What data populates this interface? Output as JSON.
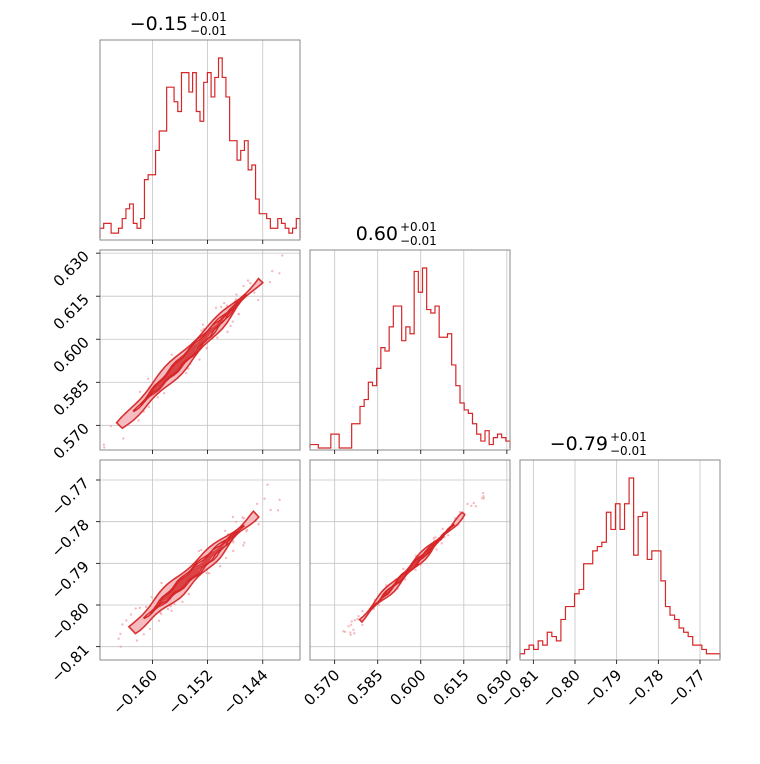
{
  "chart_data": {
    "type": "corner",
    "color": "#d62728",
    "grid": true,
    "parameters": [
      {
        "title": {
          "median": "−0.15",
          "plus": "+0.01",
          "minus": "−0.01"
        },
        "ticks": [
          -0.16,
          -0.152,
          -0.144
        ],
        "tick_labels": [
          "−0.160",
          "−0.152",
          "−0.144"
        ],
        "range": [
          -0.1676,
          -0.1386
        ]
      },
      {
        "title": {
          "median": "0.60",
          "plus": "+0.01",
          "minus": "−0.01"
        },
        "ticks": [
          0.57,
          0.585,
          0.6,
          0.615,
          0.63
        ],
        "tick_labels": [
          "0.570",
          "0.585",
          "0.600",
          "0.615",
          "0.630"
        ],
        "range": [
          0.5614,
          0.6311
        ]
      },
      {
        "title": {
          "median": "−0.79",
          "plus": "+0.01",
          "minus": "−0.01"
        },
        "ticks": [
          -0.81,
          -0.8,
          -0.79,
          -0.78,
          -0.77
        ],
        "tick_labels": [
          "−0.81",
          "−0.80",
          "−0.79",
          "−0.78",
          "−0.77"
        ],
        "range": [
          -0.8132,
          -0.7652
        ]
      }
    ],
    "histograms": [
      {
        "param": 0,
        "bin_edges_range": [
          -0.1676,
          -0.1386
        ],
        "counts": [
          2,
          3,
          3,
          1,
          1,
          2,
          4,
          6,
          7,
          3,
          2,
          4,
          12,
          13,
          13,
          18,
          22,
          22,
          31,
          31,
          28,
          26,
          34,
          34,
          30,
          34,
          26,
          24,
          32,
          34,
          29,
          33,
          37,
          33,
          29,
          20,
          20,
          16,
          18,
          20,
          14,
          15,
          8,
          5,
          5,
          4,
          2,
          2,
          4,
          3,
          2,
          1,
          2,
          4
        ]
      },
      {
        "param": 1,
        "bin_edges_range": [
          0.5614,
          0.6311
        ],
        "counts": [
          1,
          1,
          0,
          0,
          0,
          4,
          4,
          0,
          0,
          0,
          7,
          7,
          12,
          14,
          19,
          18,
          23,
          29,
          28,
          35,
          41,
          41,
          31,
          35,
          33,
          51,
          45,
          52,
          40,
          39,
          41,
          32,
          32,
          33,
          24,
          18,
          13,
          11,
          10,
          7,
          4,
          2,
          5,
          1,
          3,
          4,
          3,
          2
        ]
      },
      {
        "param": 2,
        "bin_edges_range": [
          -0.8132,
          -0.7652
        ],
        "counts": [
          1,
          2,
          3,
          2,
          4,
          3,
          6,
          5,
          4,
          9,
          12,
          12,
          15,
          16,
          22,
          22,
          25,
          26,
          27,
          34,
          30,
          36,
          30,
          36,
          42,
          24,
          33,
          34,
          23,
          25,
          25,
          18,
          12,
          10,
          9,
          7,
          6,
          5,
          3,
          3,
          2,
          1,
          1,
          1
        ]
      }
    ],
    "pairs": [
      {
        "x_param": 0,
        "y_param": 1,
        "slope": 2.55
      },
      {
        "x_param": 0,
        "y_param": 2,
        "slope": 1.7
      },
      {
        "x_param": 1,
        "y_param": 2,
        "slope": 0.67
      }
    ]
  }
}
